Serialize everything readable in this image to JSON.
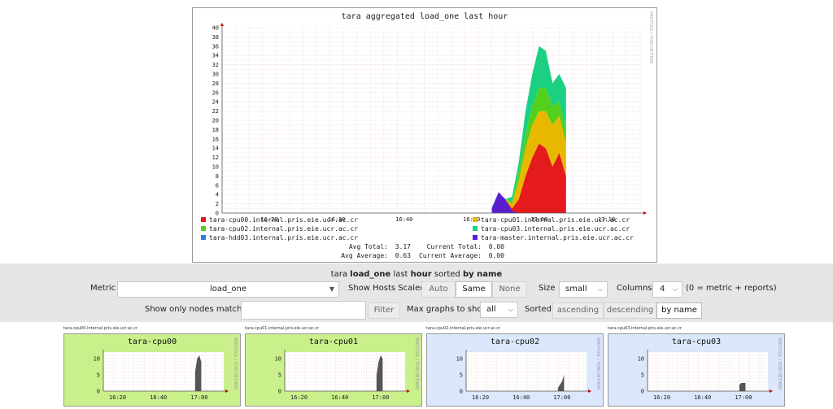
{
  "main_graph": {
    "title": "tara aggregated load_one last hour",
    "side_text": "RRDTOOL / TOBI OETIKER",
    "y_ticks": [
      "0",
      "2",
      "4",
      "6",
      "8",
      "10",
      "12",
      "14",
      "16",
      "18",
      "20",
      "22",
      "24",
      "26",
      "28",
      "30",
      "32",
      "34",
      "36",
      "38",
      "40"
    ],
    "x_ticks": [
      "16:20",
      "16:30",
      "16:40",
      "16:50",
      "17:00",
      "17:10"
    ],
    "legend": [
      {
        "name": "tara-cpu00.internal.pris.eie.ucr.ac.cr",
        "color": "#e41a1c"
      },
      {
        "name": "tara-cpu01.internal.pris.eie.ucr.ac.cr",
        "color": "#e8b800"
      },
      {
        "name": "tara-cpu02.internal.pris.eie.ucr.ac.cr",
        "color": "#52d01b"
      },
      {
        "name": "tara-cpu03.internal.pris.eie.ucr.ac.cr",
        "color": "#1bd081"
      },
      {
        "name": "tara-hdd03.internal.pris.eie.ucr.ac.cr",
        "color": "#2a7fd8"
      },
      {
        "name": "tara-master.internal.pris.eie.ucr.ac.cr",
        "color": "#5a1ed0"
      }
    ],
    "stats": {
      "avg_total_label": "Avg Total:",
      "avg_total": "3.17",
      "current_total_label": "Current Total:",
      "current_total": "0.00",
      "avg_average_label": "Avg Average:",
      "avg_average": "0.63",
      "current_average_label": "Current Average:",
      "current_average": "0.00"
    },
    "chart_data": {
      "type": "area",
      "title": "tara aggregated load_one last hour",
      "ylim": [
        0,
        40
      ],
      "x": [
        "16:53",
        "16:54",
        "16:55",
        "16:56",
        "16:57",
        "16:58",
        "16:59",
        "17:00",
        "17:01",
        "17:02",
        "17:03",
        "17:04"
      ],
      "series": [
        {
          "name": "tara-cpu00.internal.pris.eie.ucr.ac.cr",
          "values": [
            0,
            0,
            0,
            0.5,
            3,
            8,
            12,
            15,
            14,
            10,
            13,
            8
          ]
        },
        {
          "name": "tara-cpu01.internal.pris.eie.ucr.ac.cr",
          "values": [
            0,
            0,
            0,
            1,
            4,
            6,
            7,
            7,
            8,
            9,
            8,
            7
          ]
        },
        {
          "name": "tara-cpu02.internal.pris.eie.ucr.ac.cr",
          "values": [
            0,
            0,
            0,
            0.5,
            2,
            3,
            4,
            5,
            5,
            4,
            3,
            3
          ]
        },
        {
          "name": "tara-cpu03.internal.pris.eie.ucr.ac.cr",
          "values": [
            0,
            0,
            0,
            1,
            2,
            5,
            7,
            9,
            8,
            5,
            6,
            9
          ]
        },
        {
          "name": "tara-hdd03.internal.pris.eie.ucr.ac.cr",
          "values": [
            0.2,
            0,
            0,
            0,
            0,
            0,
            0,
            0,
            0,
            0,
            0,
            0
          ]
        },
        {
          "name": "tara-master.internal.pris.eie.ucr.ac.cr",
          "values": [
            1,
            4.5,
            3,
            0.5,
            0,
            0,
            0,
            0,
            0,
            0,
            0,
            0
          ]
        }
      ]
    }
  },
  "controls": {
    "host": "tara",
    "metric_bold": "load_one",
    "last_word": "last",
    "range_bold": "hour",
    "sorted_word": "sorted",
    "sort_bold": "by name",
    "metric_label": "Metric",
    "metric_value": "load_one",
    "scaled_label": "Show Hosts Scaled:",
    "scaled_options": [
      "Auto",
      "Same",
      "None"
    ],
    "size_label": "Size",
    "size_value": "small",
    "columns_label": "Columns",
    "columns_value": "4",
    "columns_note": "(0 = metric + reports)",
    "filter_label": "Show only nodes matching",
    "filter_value": "",
    "filter_button": "Filter",
    "max_label": "Max graphs to show",
    "max_value": "all",
    "sorted_label": "Sorted",
    "sort_options": [
      "ascending",
      "descending",
      "by name"
    ]
  },
  "small_graphs": [
    {
      "caption": "tara-cpu00.internal.pris.eie.ucr.ac.cr",
      "title": "tara-cpu00",
      "bg": "#c9f08a",
      "y_ticks": [
        "0",
        "5",
        "10"
      ],
      "x_ticks": [
        "16:20",
        "16:40",
        "17:00"
      ],
      "side_text": "RRDTOOL / TOBI OETIKER",
      "chart_data": {
        "type": "area",
        "x": [
          "16:58",
          "16:59",
          "17:00",
          "17:01"
        ],
        "values": [
          6,
          10,
          11,
          9
        ],
        "ylim": [
          0,
          12
        ]
      }
    },
    {
      "caption": "tara-cpu01.internal.pris.eie.ucr.ac.cr",
      "title": "tara-cpu01",
      "bg": "#c9f08a",
      "y_ticks": [
        "0",
        "5",
        "10"
      ],
      "x_ticks": [
        "16:20",
        "16:40",
        "17:00"
      ],
      "side_text": "RRDTOOL / TOBI OETIKER",
      "chart_data": {
        "type": "area",
        "x": [
          "16:58",
          "16:59",
          "17:00",
          "17:01"
        ],
        "values": [
          5,
          9,
          11,
          10
        ],
        "ylim": [
          0,
          12
        ]
      }
    },
    {
      "caption": "tara-cpu02.internal.pris.eie.ucr.ac.cr",
      "title": "tara-cpu02",
      "bg": "#dbe7fb",
      "y_ticks": [
        "0",
        "5",
        "10"
      ],
      "x_ticks": [
        "16:20",
        "16:40",
        "17:00"
      ],
      "side_text": "RRDTOOL / TOBI OETIKER",
      "chart_data": {
        "type": "area",
        "x": [
          "16:58",
          "16:59",
          "17:00",
          "17:01"
        ],
        "values": [
          1,
          2,
          3,
          5
        ],
        "ylim": [
          0,
          12
        ]
      }
    },
    {
      "caption": "tara-cpu03.internal.pris.eie.ucr.ac.cr",
      "title": "tara-cpu03",
      "bg": "#dbe7fb",
      "y_ticks": [
        "0",
        "5",
        "10"
      ],
      "x_ticks": [
        "16:20",
        "16:40",
        "17:00"
      ],
      "side_text": "RRDTOOL / TOBI OETIKER",
      "chart_data": {
        "type": "area",
        "x": [
          "16:58",
          "16:59",
          "17:00",
          "17:01"
        ],
        "values": [
          2,
          2.5,
          2.5,
          2.5
        ],
        "ylim": [
          0,
          12
        ]
      }
    }
  ]
}
